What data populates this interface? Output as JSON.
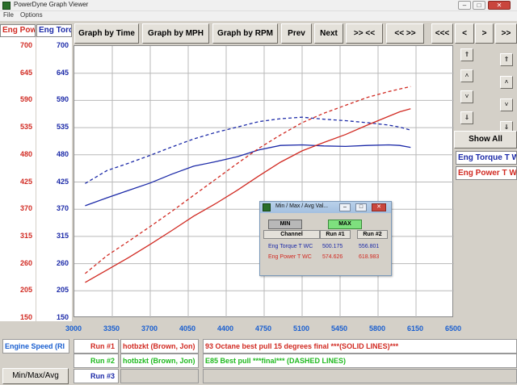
{
  "window": {
    "title": "PowerDyne Graph Viewer",
    "minimize": "–",
    "maximize": "□",
    "close": "✕"
  },
  "menu": {
    "file": "File",
    "options": "Options"
  },
  "toolbar": {
    "by_time": "Graph by Time",
    "by_mph": "Graph by MPH",
    "by_rpm": "Graph by RPM",
    "prev": "Prev",
    "next": "Next",
    "zoom_in": ">> <<",
    "zoom_out": "<< >>",
    "first": "<<<",
    "left": "<",
    "right": ">",
    "last": ">>"
  },
  "axes_headers": {
    "left1": "Eng Power T",
    "left2": "Eng Torque T"
  },
  "y_power_ticks": [
    "700",
    "645",
    "590",
    "535",
    "480",
    "425",
    "370",
    "315",
    "260",
    "205",
    "150"
  ],
  "y_torque_ticks": [
    "700",
    "645",
    "590",
    "535",
    "480",
    "425",
    "370",
    "315",
    "260",
    "205",
    "150"
  ],
  "x_ticks": [
    "3000",
    "3350",
    "3700",
    "4050",
    "4400",
    "4750",
    "5100",
    "5450",
    "5800",
    "6150",
    "6500"
  ],
  "colors": {
    "torque": "#1c2aa8",
    "power": "#d12a22",
    "grid": "#b9b9b9",
    "run2": "#1fba1f",
    "blue_text": "#1a5fd0"
  },
  "right_panel": {
    "scroll_up_fast": "⇑",
    "scroll_up": "˄",
    "scroll_down": "˅",
    "scroll_down_fast": "⇓",
    "show_all": "Show All",
    "legend_torque": "Eng Torque T WC",
    "legend_power": "Eng Power T WC"
  },
  "footer": {
    "x_channel": "Engine Speed (RI",
    "run1_label": "Run #1",
    "run1_driver": "hotbzkt (Brown, Jon)",
    "run1_desc": "93 Octane best pull 15 degrees final ***(SOLID LINES)***",
    "run2_label": "Run #2",
    "run2_driver": "hotbzkt (Brown, Jon)",
    "run2_desc": "E85 Best pull  ***final*** (DASHED LINES)",
    "run3_label": "Run #3",
    "minmax_button": "Min/Max/Avg"
  },
  "popup": {
    "title": "Min / Max / Avg Val...",
    "min_btn": "MIN",
    "max_btn": "MAX",
    "col_channel": "Channel",
    "col_run1": "Run #1",
    "col_run2": "Run #2",
    "rows": [
      {
        "channel": "Eng Torque T WC",
        "run1": "500.175",
        "run2": "556.801"
      },
      {
        "channel": "Eng Power T WC",
        "run1": "574.626",
        "run2": "618.983"
      }
    ]
  },
  "chart_data": {
    "type": "line",
    "xlim": [
      3000,
      6500
    ],
    "ylim": [
      150,
      700
    ],
    "grid": true,
    "series": [
      {
        "name": "Eng Torque T WC",
        "run": "Run #1",
        "style": "solid",
        "color": "#1c2aa8",
        "x": [
          3100,
          3300,
          3500,
          3700,
          3900,
          4100,
          4300,
          4500,
          4700,
          4900,
          5100,
          5300,
          5500,
          5700,
          5900,
          6000,
          6100
        ],
        "y": [
          377,
          393,
          408,
          423,
          441,
          457,
          466,
          476,
          490,
          499,
          500,
          498,
          497,
          499,
          500,
          499,
          495
        ]
      },
      {
        "name": "Eng Torque T WC",
        "run": "Run #2",
        "style": "dashed",
        "color": "#1c2aa8",
        "x": [
          3100,
          3300,
          3500,
          3700,
          3900,
          4100,
          4300,
          4500,
          4700,
          4900,
          5100,
          5300,
          5500,
          5700,
          5900,
          6000,
          6100
        ],
        "y": [
          422,
          448,
          463,
          479,
          496,
          512,
          525,
          536,
          547,
          553,
          556,
          552,
          549,
          545,
          540,
          536,
          530
        ]
      },
      {
        "name": "Eng Power T WC",
        "run": "Run #1",
        "style": "solid",
        "color": "#d12a22",
        "x": [
          3100,
          3300,
          3500,
          3700,
          3900,
          4100,
          4300,
          4500,
          4700,
          4900,
          5100,
          5300,
          5500,
          5700,
          5900,
          6000,
          6100
        ],
        "y": [
          222,
          247,
          272,
          299,
          327,
          356,
          381,
          408,
          437,
          465,
          488,
          505,
          521,
          540,
          558,
          567,
          573
        ]
      },
      {
        "name": "Eng Power T WC",
        "run": "Run #2",
        "style": "dashed",
        "color": "#d12a22",
        "x": [
          3100,
          3300,
          3500,
          3700,
          3900,
          4100,
          4300,
          4500,
          4700,
          4900,
          5100,
          5300,
          5500,
          5700,
          5900,
          6000,
          6100
        ],
        "y": [
          240,
          276,
          305,
          335,
          366,
          398,
          430,
          462,
          493,
          520,
          545,
          564,
          580,
          596,
          608,
          613,
          618
        ]
      }
    ]
  }
}
